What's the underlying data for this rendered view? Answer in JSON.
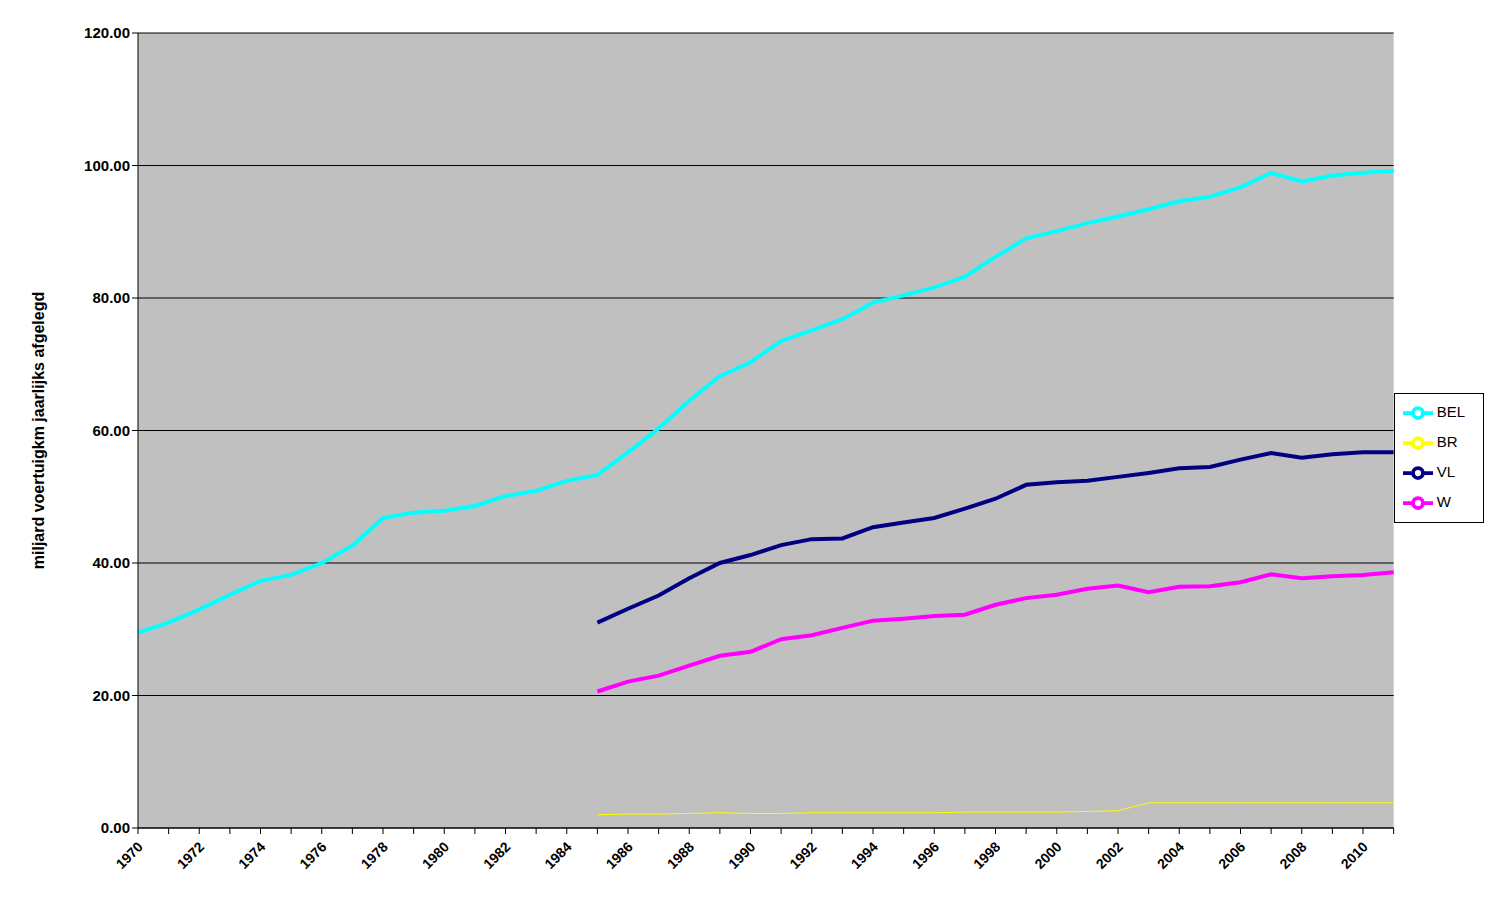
{
  "chart_data": {
    "type": "line",
    "y_label": "miljard voertuigkm jaarlijks afgelegd",
    "categories": [
      "1970",
      null,
      "1972",
      null,
      "1974",
      null,
      "1976",
      null,
      "1978",
      null,
      "1980",
      null,
      "1982",
      null,
      "1984",
      null,
      "1986",
      null,
      "1988",
      null,
      "1990",
      null,
      "1992",
      null,
      "1994",
      null,
      "1996",
      null,
      "1998",
      null,
      "2000",
      null,
      "2002",
      null,
      "2004",
      null,
      "2006",
      null,
      "2008",
      null,
      "2010",
      null
    ],
    "series": [
      {
        "name": "VL",
        "color": "#000080",
        "values": [
          null,
          null,
          null,
          null,
          null,
          null,
          null,
          null,
          null,
          null,
          null,
          null,
          null,
          null,
          null,
          31.0,
          33.1,
          35.1,
          37.7,
          40.0,
          41.2,
          42.7,
          43.6,
          43.7,
          45.4,
          46.1,
          46.8,
          48.2,
          49.7,
          51.8,
          52.2,
          52.4,
          53.0,
          53.6,
          54.3,
          54.5,
          55.6,
          56.6,
          55.9,
          56.4,
          56.7,
          56.7
        ]
      },
      {
        "name": "W",
        "color": "#ff00ff",
        "values": [
          null,
          null,
          null,
          null,
          null,
          null,
          null,
          null,
          null,
          null,
          null,
          null,
          null,
          null,
          null,
          20.6,
          22.1,
          23.0,
          24.5,
          26.0,
          26.6,
          28.5,
          29.1,
          30.2,
          31.3,
          31.6,
          32.0,
          32.2,
          33.7,
          34.7,
          35.2,
          36.1,
          36.6,
          35.6,
          36.4,
          36.5,
          37.1,
          38.3,
          37.7,
          38.0,
          38.2,
          38.6
        ]
      },
      {
        "name": "BR",
        "color": "#ffff00",
        "values": [
          null,
          null,
          null,
          null,
          null,
          null,
          null,
          null,
          null,
          null,
          null,
          null,
          null,
          null,
          null,
          2.0,
          2.1,
          2.1,
          2.2,
          2.3,
          2.2,
          2.2,
          2.3,
          2.3,
          2.3,
          2.3,
          2.3,
          2.4,
          2.4,
          2.4,
          2.4,
          2.5,
          2.6,
          3.8,
          3.8,
          3.8,
          3.8,
          3.8,
          3.8,
          3.8,
          3.8,
          3.8
        ]
      },
      {
        "name": "BEL",
        "color": "#00ffff",
        "values": [
          29.5,
          31.0,
          33.0,
          35.2,
          37.3,
          38.2,
          40.0,
          42.6,
          46.8,
          47.6,
          47.9,
          48.6,
          50.1,
          50.9,
          52.4,
          53.3,
          56.7,
          60.3,
          64.5,
          68.2,
          70.3,
          73.5,
          75.1,
          76.8,
          79.3,
          80.4,
          81.6,
          83.2,
          86.2,
          89.0,
          90.1,
          91.3,
          92.3,
          93.4,
          94.6,
          95.3,
          96.7,
          98.9,
          97.6,
          98.5,
          98.9,
          99.2
        ]
      }
    ],
    "ylim": [
      0,
      120
    ],
    "yticks": [
      {
        "value": 0,
        "label": "0.00"
      },
      {
        "value": 20,
        "label": "20.00"
      },
      {
        "value": 40,
        "label": "40.00"
      },
      {
        "value": 60,
        "label": "60.00"
      },
      {
        "value": 80,
        "label": "80.00"
      },
      {
        "value": 100,
        "label": "100.00"
      },
      {
        "value": 120,
        "label": "120.00"
      }
    ],
    "grid": true,
    "legend": "right"
  }
}
